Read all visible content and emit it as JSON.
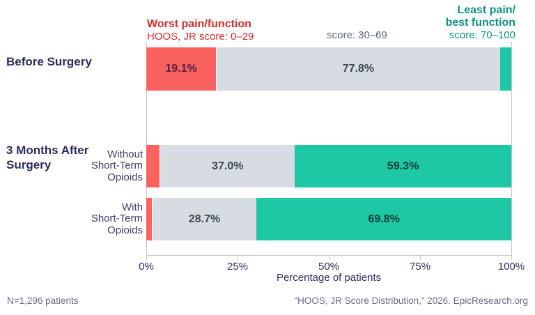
{
  "colors": {
    "bar-red": "#f9625e",
    "bar-gray": "#d7dce3",
    "bar-green": "#1ec8a5",
    "text-red": "#d62b28",
    "text-green": "#0f9180",
    "text-gray": "#5d6772",
    "text-navy": "#2b2b5c",
    "text-sublabel": "#3c4166",
    "label-on-red": "#551f3d",
    "label-on-gray": "#3d4652",
    "label-on-green": "#123f38",
    "text-footer": "#6a6a80",
    "gridline": "#c2c7cd"
  },
  "legend": {
    "worst_title": "Worst pain/function",
    "worst_sub": "HOOS, JR score: 0–29",
    "mid_sub": "score: 30–69",
    "best_title_line1": "Least pain/",
    "best_title_line2": "best function",
    "best_sub": "score: 70–100"
  },
  "row_groups": {
    "before": "Before Surgery",
    "after": "3 Months After Surgery"
  },
  "chart_data": {
    "type": "bar",
    "orientation": "horizontal",
    "stacked": true,
    "title": "HOOS, JR Score Distribution",
    "xlabel": "Percentage of patients",
    "xlim": [
      0,
      100
    ],
    "x_ticks": [
      "0%",
      "25%",
      "50%",
      "75%",
      "100%"
    ],
    "legend_entries": [
      "Worst pain/function — HOOS, JR score: 0–29",
      "score: 30–69",
      "Least pain/best function — score: 70–100"
    ],
    "bars": [
      {
        "group": "Before Surgery",
        "label_lines": [],
        "values": [
          19.1,
          77.8,
          3.1
        ],
        "display": [
          "19.1%",
          "77.8%",
          ""
        ]
      },
      {
        "group": "3 Months After Surgery",
        "label_lines": [
          "Without",
          "Short-Term",
          "Opioids"
        ],
        "values": [
          3.7,
          37.0,
          59.3
        ],
        "display": [
          "",
          "37.0%",
          "59.3%"
        ]
      },
      {
        "group": "3 Months After Surgery",
        "label_lines": [
          "With",
          "Short-Term",
          "Opioids"
        ],
        "values": [
          1.5,
          28.7,
          69.8
        ],
        "display": [
          "",
          "28.7%",
          "69.8%"
        ]
      }
    ]
  },
  "footer": {
    "left": "N=1,296 patients",
    "right": "“HOOS, JR Score Distribution,” 2026. EpicResearch.org"
  }
}
